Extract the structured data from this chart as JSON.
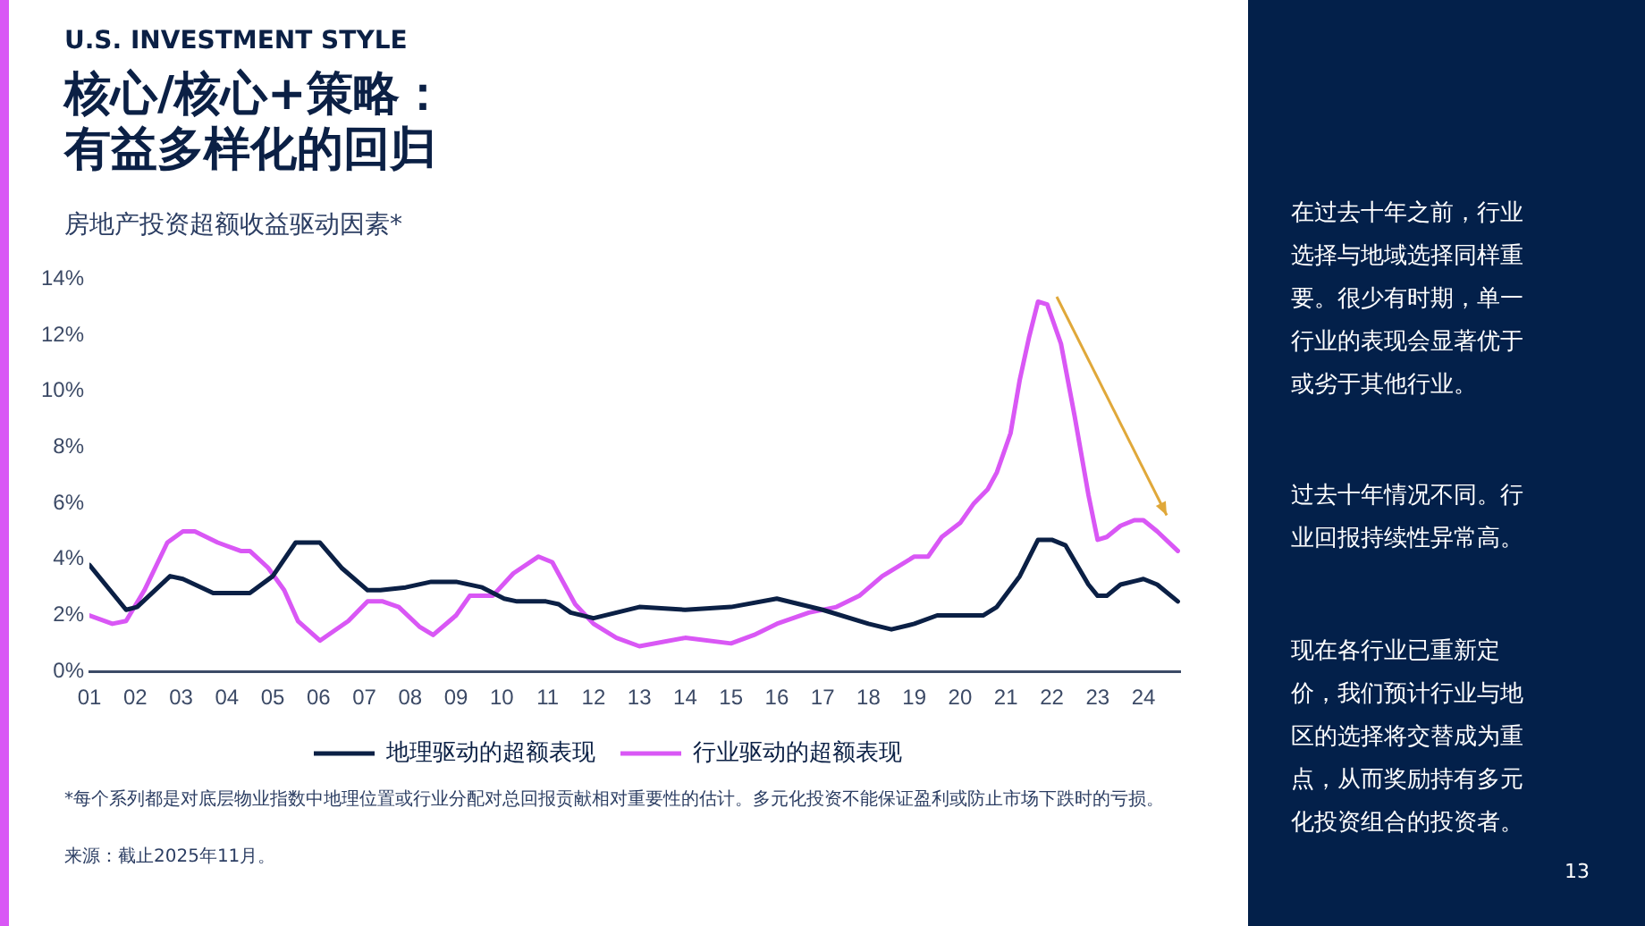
{
  "chart_data": {
    "type": "line",
    "title": "核心/核心+策略：有益多样化的回归",
    "subtitle": "房地产投资超额收益驱动因素*",
    "annotations": [
      "U.S. INVESTMENT STYLE",
      "*每个系列都是对底层物业指数中地理位置或行业分配对总回报贡献相对重要性的估计。多元化投资不能保证盈利或防止市场下跌时的亏损。",
      "来源：截止2025年11月。",
      "在过去十年之前，行业选择与地域选择同样重要。很少有时期，单一行业的表现会显著优于或劣于其他行业。",
      "过去十年情况不同。行业回报持续性异常高。",
      "现在各行业已重新定价，我们预计行业与地区的选择将交替成为重点，从而奖励持有多元化投资组合的投资者。",
      "13"
    ],
    "series": [
      {
        "name": "地理驱动的超额表现",
        "color": "#0b2045",
        "x": [
          1,
          1.8,
          2.04,
          2.76,
          3.04,
          3.7,
          4,
          4.5,
          5,
          5.5,
          6.03,
          6.5,
          7.07,
          7.35,
          7.9,
          8.46,
          9,
          9.57,
          10.05,
          10.33,
          10.96,
          11.24,
          11.5,
          12,
          12.5,
          13,
          14,
          15,
          16,
          17,
          18,
          18.5,
          19,
          19.5,
          20,
          20.5,
          20.8,
          21.3,
          21.7,
          22,
          22.3,
          22.8,
          23,
          23.2,
          23.5,
          24,
          24.3,
          24.75
        ],
        "values": [
          3.8,
          2.2,
          2.3,
          3.4,
          3.3,
          2.8,
          2.8,
          2.8,
          3.4,
          4.6,
          4.6,
          3.7,
          2.9,
          2.9,
          3.0,
          3.2,
          3.2,
          3.0,
          2.6,
          2.5,
          2.5,
          2.4,
          2.1,
          1.9,
          2.1,
          2.3,
          2.2,
          2.3,
          2.6,
          2.2,
          1.7,
          1.5,
          1.7,
          2.0,
          2.0,
          2.0,
          2.3,
          3.4,
          4.7,
          4.7,
          4.5,
          3.1,
          2.7,
          2.7,
          3.1,
          3.3,
          3.1,
          2.5
        ]
      },
      {
        "name": "行业驱动的超额表现",
        "color": "#d957f5",
        "x": [
          1,
          1.5,
          1.8,
          2.2,
          2.7,
          3.04,
          3.3,
          3.8,
          4.3,
          4.5,
          4.9,
          5.25,
          5.55,
          6.03,
          6.65,
          7.07,
          7.4,
          7.75,
          8.2,
          8.5,
          9,
          9.3,
          9.8,
          10.25,
          10.8,
          11.1,
          11.6,
          12,
          12.5,
          13,
          14,
          15,
          15.5,
          16,
          16.7,
          17.3,
          17.8,
          18.3,
          18.5,
          19,
          19.3,
          19.6,
          20,
          20.3,
          20.6,
          20.8,
          21.1,
          21.3,
          21.5,
          21.7,
          21.9,
          22.2,
          22.5,
          22.8,
          23,
          23.2,
          23.5,
          23.8,
          24,
          24.3,
          24.75
        ],
        "values": [
          2.0,
          1.7,
          1.8,
          2.9,
          4.6,
          5.0,
          5.0,
          4.6,
          4.3,
          4.3,
          3.7,
          2.9,
          1.8,
          1.1,
          1.8,
          2.5,
          2.5,
          2.3,
          1.6,
          1.3,
          2.0,
          2.7,
          2.7,
          3.5,
          4.1,
          3.9,
          2.4,
          1.7,
          1.2,
          0.9,
          1.2,
          1.0,
          1.3,
          1.7,
          2.1,
          2.3,
          2.7,
          3.4,
          3.6,
          4.1,
          4.1,
          4.8,
          5.3,
          6.0,
          6.5,
          7.1,
          8.5,
          10.4,
          11.9,
          13.2,
          13.1,
          11.7,
          9.1,
          6.3,
          4.7,
          4.8,
          5.2,
          5.4,
          5.4,
          5.0,
          4.3
        ]
      }
    ],
    "xlim": [
      1,
      24.8
    ],
    "xticks": [
      {
        "value": 1,
        "label": "01"
      },
      {
        "value": 2,
        "label": "02"
      },
      {
        "value": 3,
        "label": "03"
      },
      {
        "value": 4,
        "label": "04"
      },
      {
        "value": 5,
        "label": "05"
      },
      {
        "value": 6,
        "label": "06"
      },
      {
        "value": 7,
        "label": "07"
      },
      {
        "value": 8,
        "label": "08"
      },
      {
        "value": 9,
        "label": "09"
      },
      {
        "value": 10,
        "label": "10"
      },
      {
        "value": 11,
        "label": "11"
      },
      {
        "value": 12,
        "label": "12"
      },
      {
        "value": 13,
        "label": "13"
      },
      {
        "value": 14,
        "label": "14"
      },
      {
        "value": 15,
        "label": "15"
      },
      {
        "value": 16,
        "label": "16"
      },
      {
        "value": 17,
        "label": "17"
      },
      {
        "value": 18,
        "label": "18"
      },
      {
        "value": 19,
        "label": "19"
      },
      {
        "value": 20,
        "label": "20"
      },
      {
        "value": 21,
        "label": "21"
      },
      {
        "value": 22,
        "label": "22"
      },
      {
        "value": 23,
        "label": "23"
      },
      {
        "value": 24,
        "label": "24"
      }
    ],
    "ylim": [
      0,
      14
    ],
    "yticks": [
      {
        "value": 0,
        "label": "0%"
      },
      {
        "value": 2,
        "label": "2%"
      },
      {
        "value": 4,
        "label": "4%"
      },
      {
        "value": 6,
        "label": "6%"
      },
      {
        "value": 8,
        "label": "8%"
      },
      {
        "value": 10,
        "label": "10%"
      },
      {
        "value": 12,
        "label": "12%"
      },
      {
        "value": 14,
        "label": "14%"
      }
    ],
    "grid": false,
    "legend": "bottom",
    "line_style": "solid"
  }
}
